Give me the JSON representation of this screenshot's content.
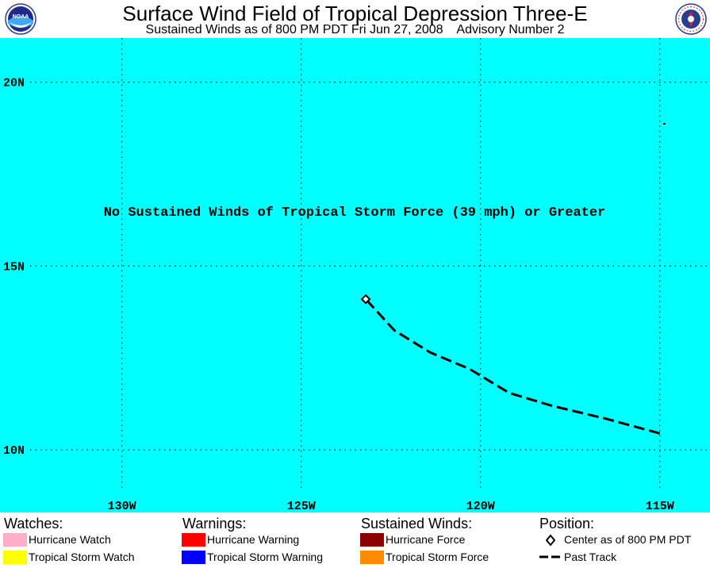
{
  "header": {
    "title": "Surface Wind Field of Tropical Depression Three-E",
    "subtitle": "Sustained Winds as of 800 PM PDT Fri Jun 27, 2008    Advisory Number 2",
    "left_logo_text": "NOAA",
    "right_logo_text": "National Weather Service"
  },
  "map": {
    "background": "#00ffff",
    "lat_labels": [
      "20N",
      "15N",
      "10N"
    ],
    "lon_labels": [
      "130W",
      "125W",
      "120W",
      "115W"
    ],
    "lat_values": [
      20,
      15,
      10
    ],
    "lon_values": [
      -130,
      -125,
      -120,
      -115
    ],
    "lon_range": [
      -133.4,
      -113.6
    ],
    "lat_range": [
      8.3,
      21.2
    ],
    "message": "No Sustained Winds of Tropical Storm Force (39 mph) or Greater",
    "center": {
      "lon": -123.2,
      "lat": 14.1
    },
    "past_track": [
      {
        "lon": -115.0,
        "lat": 10.45
      },
      {
        "lon": -116.5,
        "lat": 10.85
      },
      {
        "lon": -118.0,
        "lat": 11.2
      },
      {
        "lon": -119.2,
        "lat": 11.55
      },
      {
        "lon": -120.3,
        "lat": 12.2
      },
      {
        "lon": -121.4,
        "lat": 12.65
      },
      {
        "lon": -122.4,
        "lat": 13.25
      },
      {
        "lon": -123.2,
        "lat": 14.1
      }
    ]
  },
  "legend": {
    "watches": {
      "heading": "Watches:",
      "items": [
        {
          "label": "Hurricane Watch",
          "color": "#ffaec9"
        },
        {
          "label": "Tropical Storm Watch",
          "color": "#ffff00"
        }
      ]
    },
    "warnings": {
      "heading": "Warnings:",
      "items": [
        {
          "label": "Hurricane Warning",
          "color": "#ff0000"
        },
        {
          "label": "Tropical Storm Warning",
          "color": "#0000ff"
        }
      ]
    },
    "winds": {
      "heading": "Sustained Winds:",
      "items": [
        {
          "label": "Hurricane Force",
          "color": "#8b0000"
        },
        {
          "label": "Tropical Storm Force",
          "color": "#ff8c00"
        }
      ]
    },
    "position": {
      "heading": "Position:",
      "items": [
        {
          "label": "Center as of 800 PM PDT",
          "icon": "diamond-icon"
        },
        {
          "label": "Past Track",
          "icon": "dashed-line-icon"
        }
      ]
    }
  }
}
